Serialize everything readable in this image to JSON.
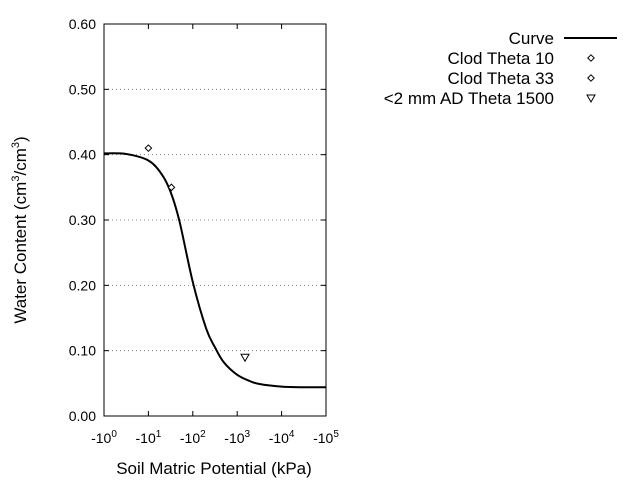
{
  "chart_data": {
    "type": "line",
    "xlabel": "Soil Matric Potential (kPa)",
    "ylabel_main": "Water Content (cm",
    "ylabel_sup1": "3",
    "ylabel_mid": "/cm",
    "ylabel_sup2": "3",
    "ylabel_end": ")",
    "x_scale": "log",
    "x_axis_note": "negative kPa, plotted as magnitude on log scale",
    "xlim_exponent": [
      0,
      5
    ],
    "x_ticks": [
      {
        "base": "-10",
        "exp": "0"
      },
      {
        "base": "-10",
        "exp": "1"
      },
      {
        "base": "-10",
        "exp": "2"
      },
      {
        "base": "-10",
        "exp": "3"
      },
      {
        "base": "-10",
        "exp": "4"
      },
      {
        "base": "-10",
        "exp": "5"
      }
    ],
    "ylim": [
      0,
      0.6
    ],
    "y_ticks": [
      "0.00",
      "0.10",
      "0.20",
      "0.30",
      "0.40",
      "0.50",
      "0.60"
    ],
    "grid": "horizontal dotted",
    "legend_placement": "top-right",
    "legend": [
      {
        "label": "Curve",
        "marker": "line"
      },
      {
        "label": "Clod Theta 10",
        "marker": "diamond"
      },
      {
        "label": "Clod Theta 33",
        "marker": "diamond"
      },
      {
        "label": "<2 mm AD Theta 1500",
        "marker": "triangle-down"
      }
    ],
    "series": [
      {
        "name": "Curve",
        "kind": "line",
        "log10_magnitude": [
          0,
          0.5,
          1.0,
          1.3,
          1.5,
          1.7,
          2.0,
          2.3,
          2.5,
          2.7,
          3.0,
          3.3,
          3.5,
          4.0,
          4.5,
          5.0
        ],
        "values": [
          0.402,
          0.401,
          0.391,
          0.37,
          0.343,
          0.298,
          0.205,
          0.134,
          0.105,
          0.082,
          0.063,
          0.053,
          0.049,
          0.045,
          0.044,
          0.044
        ]
      },
      {
        "name": "Clod Theta 10",
        "kind": "point",
        "marker": "diamond",
        "x_kpa": -10,
        "value": 0.41
      },
      {
        "name": "Clod Theta 33",
        "kind": "point",
        "marker": "diamond",
        "x_kpa": -33,
        "value": 0.35
      },
      {
        "name": "<2 mm AD Theta 1500",
        "kind": "point",
        "marker": "triangle-down",
        "x_kpa": -1500,
        "value": 0.09
      }
    ]
  }
}
